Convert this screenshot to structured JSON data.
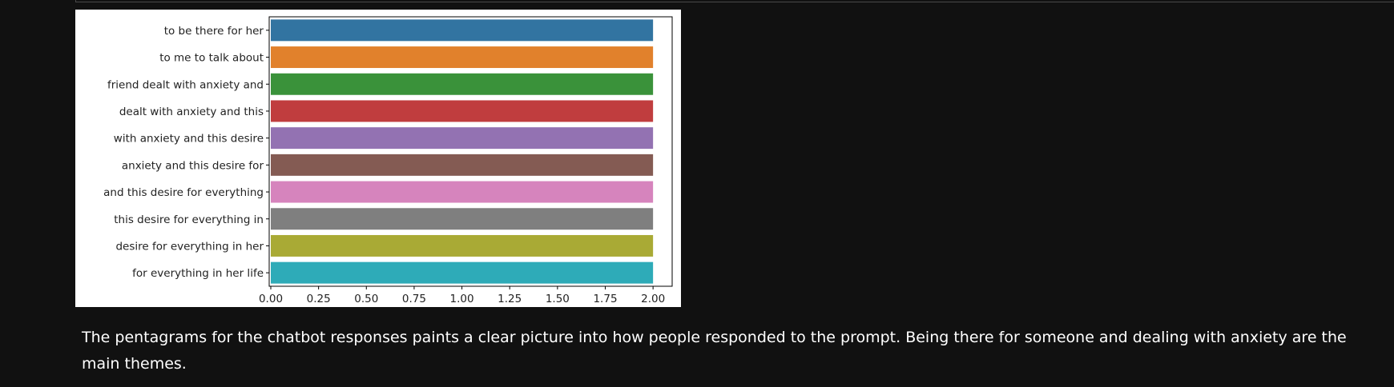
{
  "chart_data": {
    "type": "bar",
    "orientation": "horizontal",
    "categories": [
      "to be there for her",
      "to me to talk about",
      "friend dealt with anxiety and",
      "dealt with anxiety and this",
      "with anxiety and this desire",
      "anxiety and this desire for",
      "and this desire for everything",
      "this desire for everything in",
      "desire for everything in her",
      "for everything in her life"
    ],
    "values": [
      2,
      2,
      2,
      2,
      2,
      2,
      2,
      2,
      2,
      2
    ],
    "colors": [
      "#3274a1",
      "#e1812c",
      "#3a923a",
      "#c03d3e",
      "#9372b2",
      "#845b53",
      "#d684bd",
      "#7f7f7f",
      "#a9aa35",
      "#2eabb8"
    ],
    "xlim": [
      0,
      2.1
    ],
    "xticks": [
      "0.00",
      "0.25",
      "0.50",
      "0.75",
      "1.00",
      "1.25",
      "1.50",
      "1.75",
      "2.00"
    ],
    "title": "",
    "xlabel": "",
    "ylabel": ""
  },
  "caption": "The pentagrams for the chatbot responses paints a clear picture into how people responded to the prompt. Being there for someone and dealing with anxiety are the main themes."
}
